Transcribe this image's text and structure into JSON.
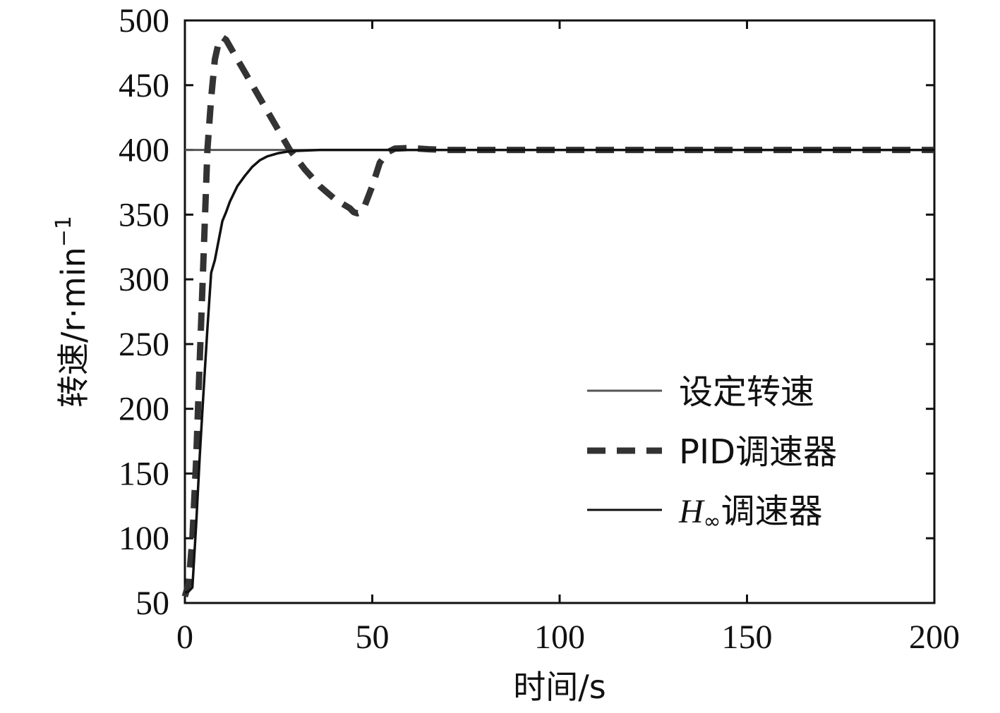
{
  "chart_data": {
    "type": "line",
    "xlabel": "时间/s",
    "ylabel": "转速/r·min",
    "ylabel_superscript": "−1",
    "xlim": [
      0,
      200
    ],
    "ylim": [
      50,
      500
    ],
    "xticks": [
      0,
      50,
      100,
      150,
      200
    ],
    "yticks": [
      50,
      100,
      150,
      200,
      250,
      300,
      350,
      400,
      450,
      500
    ],
    "grid": false,
    "legend_position": "lower-right",
    "series": [
      {
        "name": "设定转速",
        "style": "thin-solid",
        "color": "#555555",
        "x": [
          0,
          200
        ],
        "y": [
          400,
          400
        ]
      },
      {
        "name": "PID调速器",
        "style": "thick-dashed",
        "color": "#333333",
        "x": [
          0,
          1,
          2,
          3,
          4,
          5,
          6,
          7,
          8,
          9,
          10,
          11,
          12,
          14,
          16,
          18,
          20,
          24,
          28,
          32,
          36,
          40,
          44,
          45,
          46,
          47,
          48,
          50,
          52,
          54,
          56,
          60,
          65,
          70,
          80,
          100,
          150,
          200
        ],
        "y": [
          55,
          65,
          100,
          160,
          240,
          320,
          400,
          440,
          470,
          483,
          487,
          485,
          480,
          470,
          460,
          450,
          440,
          420,
          400,
          385,
          372,
          362,
          355,
          352,
          351,
          352,
          357,
          372,
          390,
          398,
          401,
          401.5,
          400.5,
          400,
          400,
          400,
          400,
          400
        ]
      },
      {
        "name": "H∞调速器",
        "name_main": "H",
        "name_sub": "∞",
        "name_rest": "调速器",
        "style": "solid",
        "color": "#111111",
        "x": [
          0,
          1,
          2,
          3,
          4,
          5,
          6,
          7,
          8,
          9,
          10,
          11,
          12,
          14,
          16,
          18,
          20,
          22,
          25,
          28,
          32,
          36,
          40,
          50,
          200
        ],
        "y": [
          58,
          59,
          62,
          110,
          165,
          215,
          262,
          305,
          315,
          330,
          345,
          352,
          360,
          372,
          380,
          387,
          392,
          395,
          397.5,
          399,
          399.5,
          400,
          400,
          400,
          400
        ]
      }
    ]
  }
}
